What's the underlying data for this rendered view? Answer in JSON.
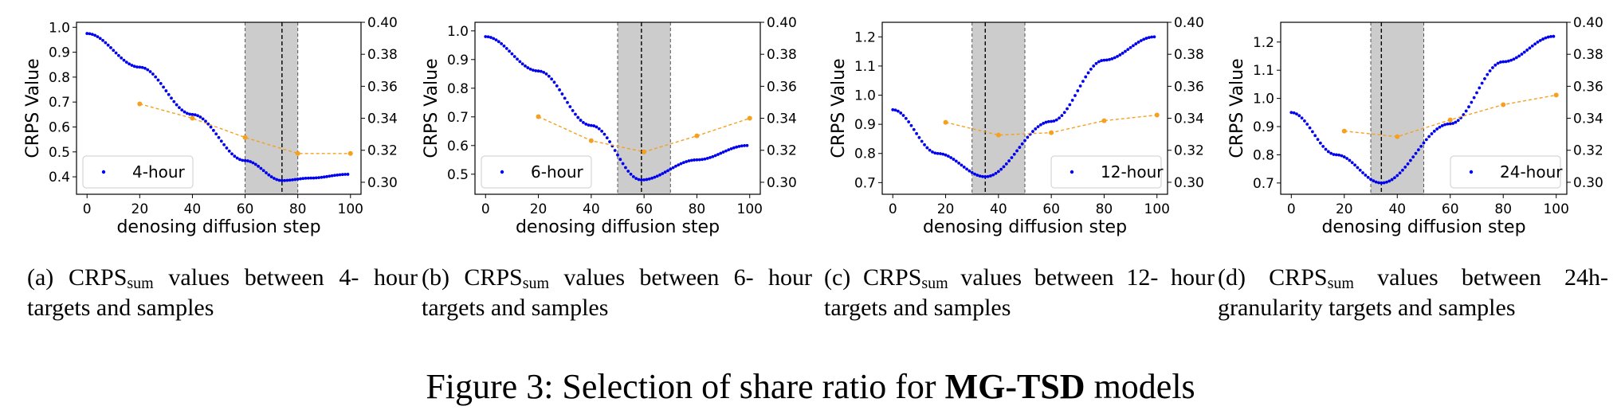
{
  "chart_data": [
    {
      "type": "scatter",
      "xlabel": "denosing diffusion step",
      "ylabel": "CRPS Value",
      "xticks": [
        0,
        20,
        40,
        60,
        80,
        100
      ],
      "ylim": [
        0.33,
        1.02
      ],
      "yticks": [
        0.4,
        0.5,
        0.6,
        0.7,
        0.8,
        0.9,
        1.0
      ],
      "y2lim": [
        0.2925,
        0.4
      ],
      "y2ticks": [
        0.3,
        0.32,
        0.34,
        0.36,
        0.38,
        0.4
      ],
      "legend": "4-hour",
      "legend_loc": "lower-left",
      "shade": [
        60,
        80
      ],
      "vline": 74,
      "main_curve": {
        "name": "4-hour",
        "color": "#0000ee",
        "anchors_x": [
          0,
          20,
          40,
          60,
          74,
          85,
          99
        ],
        "anchors_y": [
          0.975,
          0.84,
          0.65,
          0.465,
          0.385,
          0.395,
          0.41
        ]
      },
      "right_series": {
        "color": "#f5a01e",
        "x": [
          20,
          40,
          60,
          80,
          100
        ],
        "y": [
          0.349,
          0.34,
          0.328,
          0.318,
          0.318
        ]
      }
    },
    {
      "type": "scatter",
      "xlabel": "denosing diffusion step",
      "ylabel": "CRPS Value",
      "xticks": [
        0,
        20,
        40,
        60,
        80,
        100
      ],
      "ylim": [
        0.43,
        1.03
      ],
      "yticks": [
        0.5,
        0.6,
        0.7,
        0.8,
        0.9,
        1.0
      ],
      "y2lim": [
        0.2925,
        0.4
      ],
      "y2ticks": [
        0.3,
        0.32,
        0.34,
        0.36,
        0.38,
        0.4
      ],
      "legend": "6-hour",
      "legend_loc": "lower-left",
      "shade": [
        50,
        70
      ],
      "vline": 59,
      "main_curve": {
        "name": "6-hour",
        "color": "#0000ee",
        "anchors_x": [
          0,
          20,
          40,
          59,
          80,
          99
        ],
        "anchors_y": [
          0.98,
          0.86,
          0.67,
          0.48,
          0.55,
          0.6
        ]
      },
      "right_series": {
        "color": "#f5a01e",
        "x": [
          20,
          40,
          60,
          80,
          100
        ],
        "y": [
          0.341,
          0.326,
          0.319,
          0.329,
          0.34
        ]
      }
    },
    {
      "type": "scatter",
      "xlabel": "denosing diffusion step",
      "ylabel": "CRPS Value",
      "xticks": [
        0,
        20,
        40,
        60,
        80,
        100
      ],
      "ylim": [
        0.66,
        1.25
      ],
      "yticks": [
        0.7,
        0.8,
        0.9,
        1.0,
        1.1,
        1.2
      ],
      "y2lim": [
        0.2925,
        0.4
      ],
      "y2ticks": [
        0.3,
        0.32,
        0.34,
        0.36,
        0.38,
        0.4
      ],
      "legend": "12-hour",
      "legend_loc": "lower-right",
      "shade": [
        30,
        50
      ],
      "vline": 35,
      "main_curve": {
        "name": "12-hour",
        "color": "#0000ee",
        "anchors_x": [
          0,
          17,
          35,
          60,
          80,
          99
        ],
        "anchors_y": [
          0.95,
          0.8,
          0.72,
          0.91,
          1.12,
          1.2
        ]
      },
      "right_series": {
        "color": "#f5a01e",
        "x": [
          20,
          40,
          60,
          80,
          100
        ],
        "y": [
          0.3375,
          0.3295,
          0.331,
          0.3385,
          0.342
        ]
      }
    },
    {
      "type": "scatter",
      "xlabel": "denosing diffusion step",
      "ylabel": "CRPS Value",
      "xticks": [
        0,
        20,
        40,
        60,
        80,
        100
      ],
      "ylim": [
        0.66,
        1.27
      ],
      "yticks": [
        0.7,
        0.8,
        0.9,
        1.0,
        1.1,
        1.2
      ],
      "y2lim": [
        0.2925,
        0.4
      ],
      "y2ticks": [
        0.3,
        0.32,
        0.34,
        0.36,
        0.38,
        0.4
      ],
      "legend": "24-hour",
      "legend_loc": "lower-right",
      "shade": [
        30,
        50
      ],
      "vline": 34,
      "main_curve": {
        "name": "24-hour",
        "color": "#0000ee",
        "anchors_x": [
          0,
          17,
          34,
          60,
          80,
          99
        ],
        "anchors_y": [
          0.95,
          0.8,
          0.7,
          0.91,
          1.13,
          1.22
        ]
      },
      "right_series": {
        "color": "#f5a01e",
        "x": [
          20,
          40,
          60,
          80,
          100
        ],
        "y": [
          0.332,
          0.3285,
          0.339,
          0.3485,
          0.3545
        ]
      }
    }
  ],
  "captions": [
    {
      "label": "(a)",
      "metric": "CRPS",
      "sub": "sum",
      "text_line1": "values between 4-",
      "text_line2": "hour targets and samples"
    },
    {
      "label": "(b)",
      "metric": "CRPS",
      "sub": "sum",
      "text_line1": "values between 6-",
      "text_line2": "hour targets and samples"
    },
    {
      "label": "(c)",
      "metric": "CRPS",
      "sub": "sum",
      "text_line1": "values between 12-",
      "text_line2": "hour targets and samples"
    },
    {
      "label": "(d)",
      "metric": "CRPS",
      "sub": "sum",
      "text_line1": "values between 24h-",
      "text_line2": "granularity targets and samples"
    }
  ],
  "figure_caption": {
    "prefix": "Figure 3: Selection of share ratio for ",
    "bold": "MG-TSD",
    "suffix": " models"
  }
}
